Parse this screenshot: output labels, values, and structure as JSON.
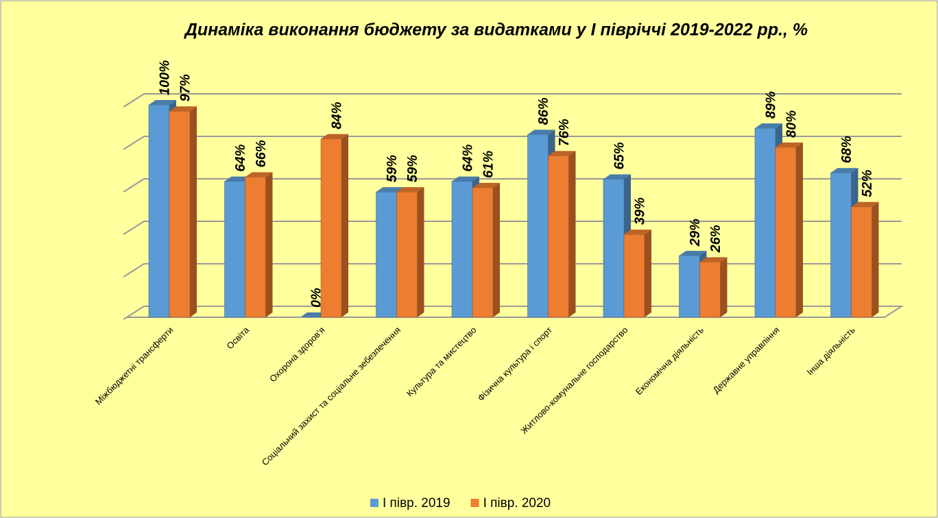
{
  "chart_data": {
    "type": "bar3d",
    "title": "Динаміка виконання бюджету за видатками у І півріччі 2019-2022 рр., %",
    "categories": [
      "Міжбюджетні трансферти",
      "Освіта",
      "Охорона здоров'я",
      "Соціальний захист та соціальне зебезпечення",
      "Культура та мистецтво",
      "Фізична культура і спорт",
      "Житлово-комунальне господарство",
      "Економічна діяльність",
      "Державне управління",
      "Інша діяльність"
    ],
    "series": [
      {
        "name": "І півр. 2019",
        "color": "#5B9BD5",
        "values": [
          100,
          64,
          0,
          59,
          64,
          86,
          65,
          29,
          89,
          68
        ],
        "value_labels": [
          "100%",
          "64%",
          "0%",
          "59%",
          "64%",
          "86%",
          "65%",
          "29%",
          "89%",
          "68%"
        ]
      },
      {
        "name": "І півр. 2020",
        "color": "#ED7D31",
        "values": [
          97,
          66,
          84,
          59,
          61,
          76,
          39,
          26,
          80,
          52
        ],
        "value_labels": [
          "97%",
          "66%",
          "84%",
          "59%",
          "61%",
          "76%",
          "39%",
          "26%",
          "80%",
          "52%"
        ]
      }
    ],
    "ylim": [
      0,
      100
    ],
    "yticks": [
      0,
      20,
      40,
      60,
      80,
      100
    ],
    "grid": true,
    "legend": "bottom"
  }
}
